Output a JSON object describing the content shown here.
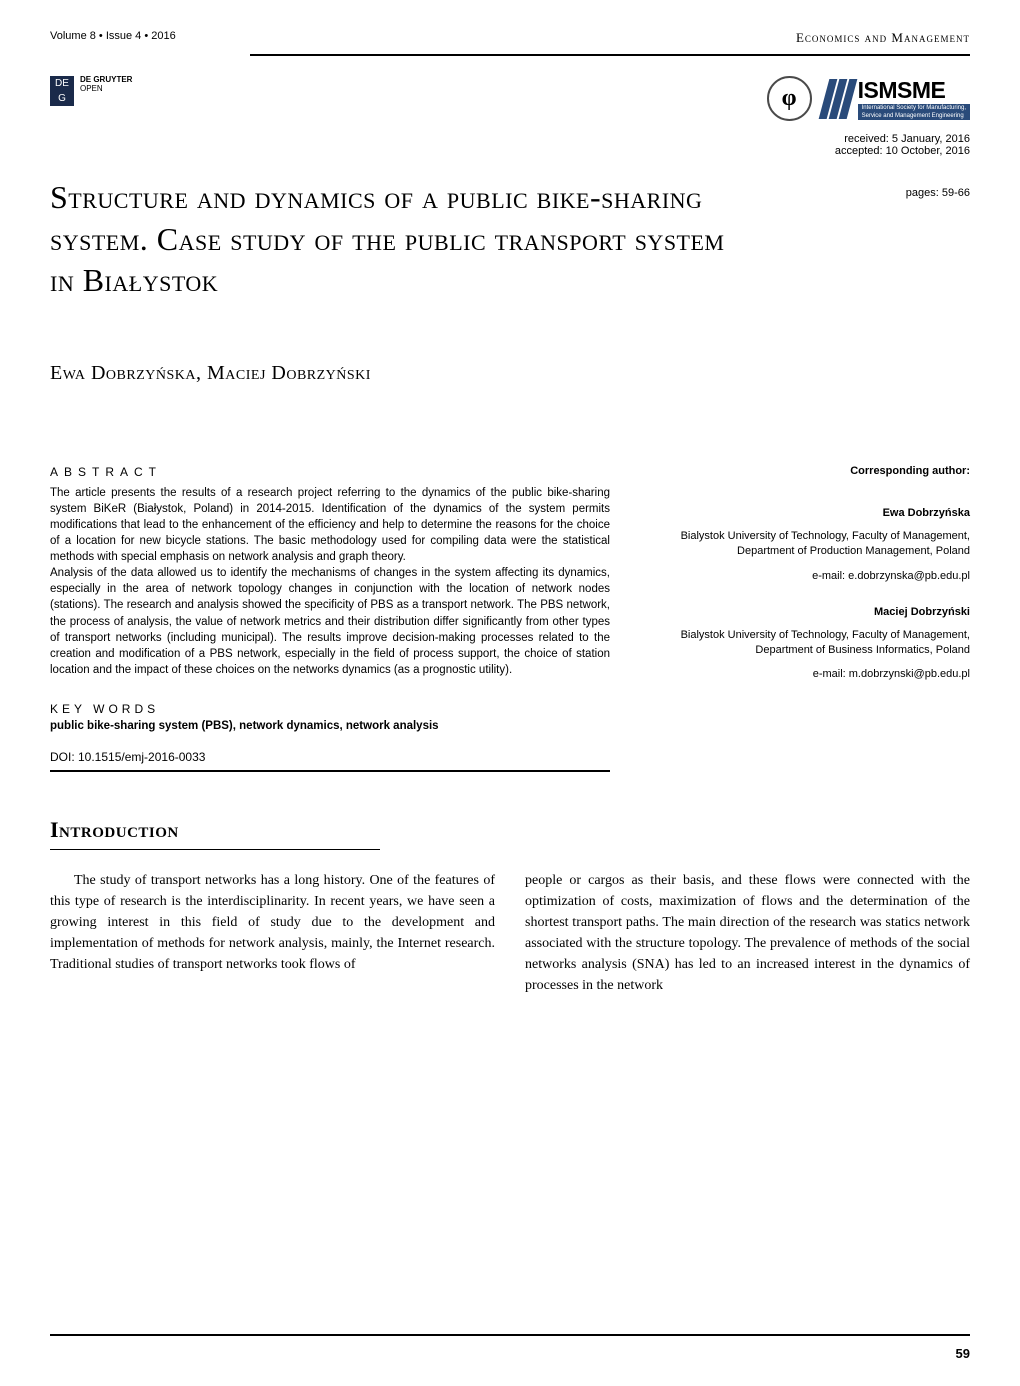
{
  "header": {
    "volume_info": "Volume 8 • Issue 4 • 2016",
    "journal_name": "Economics and Management"
  },
  "publisher": {
    "icon_top": "DE",
    "icon_bottom": "G",
    "name": "DE GRUYTER",
    "sub": "OPEN"
  },
  "logos": {
    "phi_symbol": "φ",
    "ismsme": "ISMSME",
    "ismsme_sub1": "International Society for Manufacturing,",
    "ismsme_sub2": "Service and Management Engineering"
  },
  "dates": {
    "received": "received:  5 January, 2016",
    "accepted": "accepted:  10 October, 2016"
  },
  "pages": "pages:  59-66",
  "title": "Structure and dynamics of a public bike-sharing system. Case study of the public transport system in Białystok",
  "authors_line": "Ewa Dobrzyńska, Maciej Dobrzyński",
  "abstract": {
    "label": "ABSTRACT",
    "text": "The article presents the results of a research project referring to the dynamics of the public bike-sharing system BiKeR (Białystok, Poland) in 2014-2015. Identification of the dynamics of the system permits modifications that lead to the enhancement of the efficiency and help to determine the reasons for the choice of a location for new bicycle stations. The basic methodology used for compiling data were the statistical methods with special emphasis on network analysis and graph theory.\nAnalysis of the data allowed us to identify the mechanisms of changes in the system affecting its dynamics, especially in the area of network topology changes in conjunction with the location of network nodes (stations). The research and analysis showed the specificity of PBS as a transport network. The PBS network, the process of analysis, the value of network metrics and their distribution differ significantly from other types of transport networks (including municipal). The results improve decision-making processes related to the creation and modification of a PBS network, especially in the field of process support, the choice of station location and the impact of these choices on the networks dynamics (as a prognostic utility)."
  },
  "keywords": {
    "label": "KEY WORDS",
    "text": "public bike-sharing system (PBS), network dynamics, network analysis"
  },
  "doi": "DOI: 10.1515/emj-2016-0033",
  "corresponding": {
    "label": "Corresponding author:",
    "authors": [
      {
        "name": "Ewa Dobrzyńska",
        "affiliation": "Bialystok University of Technology, Faculty of Management, Department of Production Management, Poland",
        "email": "e-mail: e.dobrzynska@pb.edu.pl"
      },
      {
        "name": "Maciej Dobrzyński",
        "affiliation": "Bialystok University of Technology, Faculty of Management, Department of Business Informatics, Poland",
        "email": "e-mail: m.dobrzynski@pb.edu.pl"
      }
    ]
  },
  "introduction": {
    "heading": "Introduction",
    "col1": "The study of transport networks has a long history. One of the features of this type of research is the interdisciplinarity. In recent years, we have seen a growing interest in this field of study due to the development and implementation of methods for network analysis, mainly, the Internet research. Traditional studies of transport networks took flows of",
    "col2": "people or cargos as their basis, and these flows were connected with the optimization of costs, maximization of flows and the determination of the shortest transport paths. The main direction of the research was statics network associated with the structure topology. The prevalence of methods of the social networks analysis (SNA) has led to an increased interest in the dynamics of processes in the network"
  },
  "page_number": "59",
  "colors": {
    "text": "#000000",
    "background": "#ffffff",
    "publisher_icon_bg": "#1a2a4a",
    "logo_blue": "#2a4b7a"
  }
}
